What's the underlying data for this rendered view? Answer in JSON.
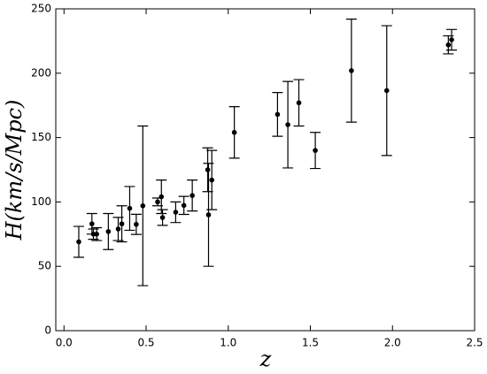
{
  "chart_data": {
    "type": "errorbar-scatter",
    "x_label": "z",
    "y_label": "H(km/s/Mpc)",
    "x": [
      0.09,
      0.17,
      0.179,
      0.199,
      0.27,
      0.33,
      0.352,
      0.4,
      0.44,
      0.48,
      0.57,
      0.593,
      0.6,
      0.68,
      0.73,
      0.781,
      0.875,
      0.88,
      0.9,
      1.037,
      1.3,
      1.363,
      1.43,
      1.53,
      1.75,
      1.965,
      2.34,
      2.36
    ],
    "values": [
      69,
      83,
      75,
      75,
      77,
      79,
      83,
      95,
      82.6,
      97,
      100,
      104,
      87.9,
      92,
      97.3,
      105,
      125,
      90,
      117,
      154,
      168,
      160,
      177,
      140,
      202,
      186.5,
      222,
      226
    ],
    "errors": [
      12,
      8,
      4,
      5,
      14,
      9,
      14,
      17,
      7.8,
      62,
      3,
      13,
      6.1,
      8,
      7,
      12,
      17,
      40,
      23,
      20,
      17,
      33.6,
      18,
      14,
      40,
      50.4,
      7,
      8
    ],
    "color": "#000000",
    "xlim": [
      -0.05,
      2.5
    ],
    "ylim": [
      0,
      250
    ],
    "xticks": [
      {
        "value": 0,
        "label": "0.0"
      },
      {
        "value": 0.5,
        "label": "0.5"
      },
      {
        "value": 1,
        "label": "1.0"
      },
      {
        "value": 1.5,
        "label": "1.5"
      },
      {
        "value": 2,
        "label": "2.0"
      },
      {
        "value": 2.5,
        "label": "2.5"
      }
    ],
    "yticks": [
      0,
      50,
      100,
      150,
      200,
      250
    ]
  }
}
